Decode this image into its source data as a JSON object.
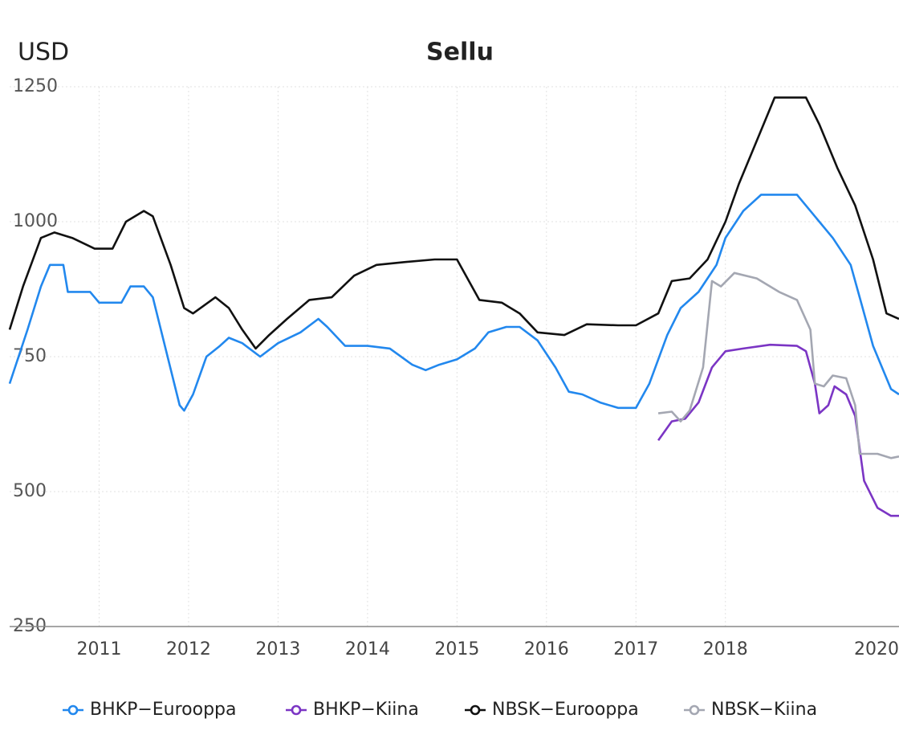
{
  "chart_data": {
    "type": "line",
    "title": "Sellu",
    "y_label": "USD",
    "xlim": [
      2010.0,
      2019.94
    ],
    "xticks": [
      2011,
      2012,
      2013,
      2014,
      2015,
      2016,
      2017,
      2018,
      2020
    ],
    "ylim": [
      250,
      1250
    ],
    "yticks": [
      250,
      500,
      750,
      1000,
      1250
    ],
    "grid": true,
    "legend": "bottom",
    "series": [
      {
        "name": "BHKP−Eurooppa",
        "color": "#2288ee",
        "x": [
          2010.0,
          2010.2,
          2010.35,
          2010.45,
          2010.6,
          2010.65,
          2010.9,
          2011.0,
          2011.25,
          2011.35,
          2011.5,
          2011.6,
          2011.75,
          2011.9,
          2011.95,
          2012.05,
          2012.2,
          2012.35,
          2012.45,
          2012.6,
          2012.8,
          2013.0,
          2013.25,
          2013.45,
          2013.55,
          2013.75,
          2014.0,
          2014.25,
          2014.5,
          2014.65,
          2014.8,
          2015.0,
          2015.2,
          2015.35,
          2015.55,
          2015.7,
          2015.9,
          2016.1,
          2016.25,
          2016.4,
          2016.6,
          2016.8,
          2017.0,
          2017.15,
          2017.35,
          2017.5,
          2017.7,
          2017.9,
          2018.0,
          2018.2,
          2018.4,
          2018.8,
          2018.95,
          2019.2,
          2019.4,
          2019.5,
          2019.65,
          2019.85,
          2019.94
        ],
        "values": [
          700,
          800,
          880,
          920,
          920,
          870,
          870,
          850,
          850,
          880,
          880,
          860,
          760,
          660,
          650,
          680,
          750,
          770,
          785,
          775,
          750,
          775,
          795,
          820,
          805,
          770,
          770,
          765,
          735,
          725,
          735,
          745,
          765,
          795,
          805,
          805,
          780,
          730,
          685,
          680,
          665,
          655,
          655,
          700,
          790,
          840,
          870,
          920,
          970,
          1020,
          1050,
          1050,
          1020,
          970,
          920,
          860,
          770,
          690,
          680
        ]
      },
      {
        "name": "BHKP−Kiina",
        "color": "#7b35c4",
        "x": [
          2017.25,
          2017.4,
          2017.55,
          2017.7,
          2017.85,
          2018.0,
          2018.2,
          2018.5,
          2018.8,
          2018.9,
          2019.0,
          2019.05,
          2019.15,
          2019.22,
          2019.35,
          2019.45,
          2019.55,
          2019.7,
          2019.85,
          2019.94
        ],
        "values": [
          595,
          630,
          635,
          665,
          730,
          760,
          765,
          772,
          770,
          760,
          700,
          645,
          660,
          695,
          680,
          640,
          520,
          470,
          455,
          455
        ]
      },
      {
        "name": "NBSK−Eurooppa",
        "color": "#111111",
        "x": [
          2010.0,
          2010.15,
          2010.35,
          2010.5,
          2010.7,
          2010.95,
          2011.15,
          2011.3,
          2011.5,
          2011.6,
          2011.8,
          2011.95,
          2012.05,
          2012.3,
          2012.45,
          2012.6,
          2012.75,
          2012.9,
          2013.1,
          2013.35,
          2013.6,
          2013.85,
          2014.1,
          2014.4,
          2014.75,
          2015.0,
          2015.25,
          2015.5,
          2015.7,
          2015.9,
          2016.2,
          2016.45,
          2016.8,
          2017.0,
          2017.25,
          2017.4,
          2017.6,
          2017.8,
          2018.0,
          2018.15,
          2018.35,
          2018.55,
          2018.9,
          2019.05,
          2019.25,
          2019.45,
          2019.65,
          2019.8,
          2019.94
        ],
        "values": [
          800,
          880,
          970,
          980,
          970,
          950,
          950,
          1000,
          1020,
          1010,
          920,
          840,
          830,
          860,
          840,
          800,
          765,
          790,
          820,
          855,
          860,
          900,
          920,
          925,
          930,
          930,
          855,
          850,
          830,
          795,
          790,
          810,
          808,
          808,
          830,
          890,
          895,
          930,
          1000,
          1070,
          1150,
          1230,
          1230,
          1180,
          1100,
          1030,
          930,
          830,
          820
        ]
      },
      {
        "name": "NBSK−Kiina",
        "color": "#a4a7b2",
        "x": [
          2017.25,
          2017.4,
          2017.5,
          2017.6,
          2017.75,
          2017.85,
          2017.95,
          2018.1,
          2018.35,
          2018.6,
          2018.8,
          2018.95,
          2019.0,
          2019.1,
          2019.2,
          2019.35,
          2019.45,
          2019.5,
          2019.7,
          2019.85,
          2019.94
        ],
        "values": [
          645,
          648,
          630,
          650,
          730,
          890,
          880,
          905,
          895,
          870,
          855,
          800,
          700,
          695,
          715,
          710,
          660,
          570,
          570,
          562,
          565
        ]
      }
    ]
  }
}
